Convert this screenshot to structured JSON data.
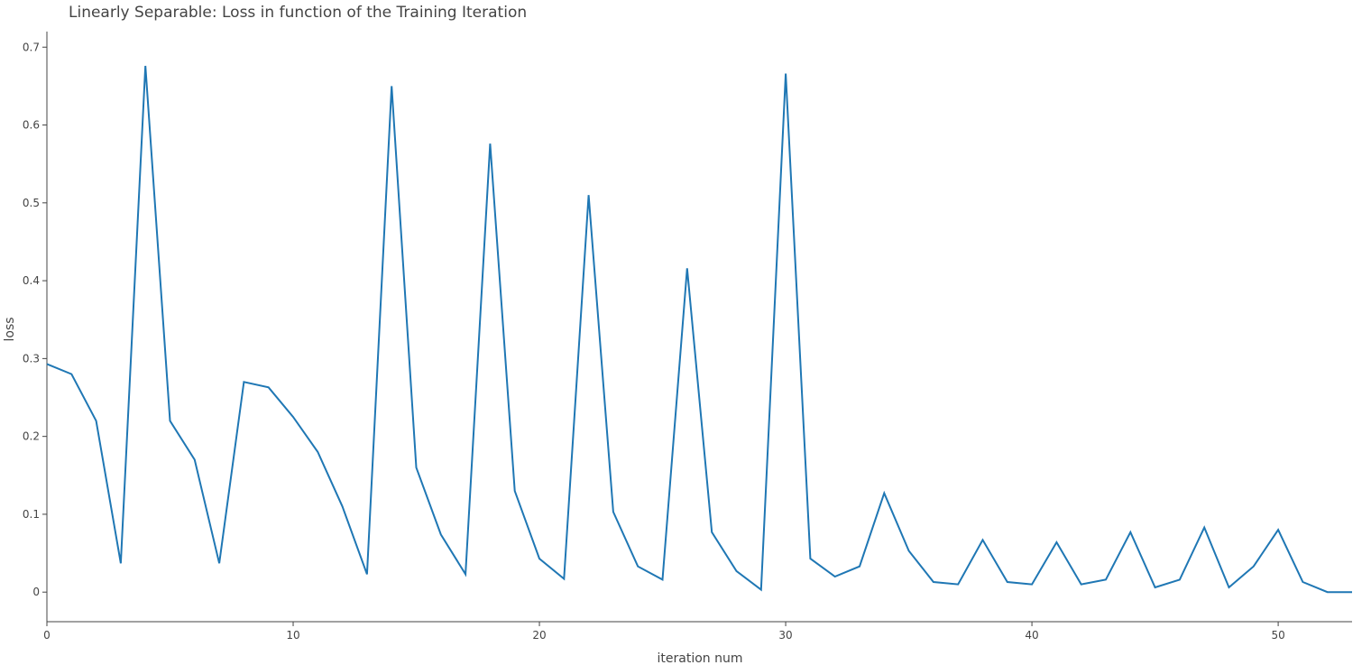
{
  "chart_data": {
    "type": "line",
    "title": "Linearly Separable: Loss in function of the Training Iteration",
    "xlabel": "iteration num",
    "ylabel": "loss",
    "xlim": [
      0,
      53
    ],
    "ylim": [
      -0.038,
      0.72
    ],
    "xticks": [
      0,
      10,
      20,
      30,
      40,
      50
    ],
    "yticks": [
      0,
      0.1,
      0.2,
      0.3,
      0.4,
      0.5,
      0.6,
      0.7
    ],
    "grid": false,
    "series_color": "#1f77b4",
    "x": [
      0,
      1,
      2,
      3,
      4,
      5,
      6,
      7,
      8,
      9,
      10,
      11,
      12,
      13,
      14,
      15,
      16,
      17,
      18,
      19,
      20,
      21,
      22,
      23,
      24,
      25,
      26,
      27,
      28,
      29,
      30,
      31,
      32,
      33,
      34,
      35,
      36,
      37,
      38,
      39,
      40,
      41,
      42,
      43,
      44,
      45,
      46,
      47,
      48,
      49,
      50,
      51,
      52,
      53
    ],
    "y": [
      0.293,
      0.28,
      0.22,
      0.037,
      0.676,
      0.22,
      0.17,
      0.037,
      0.27,
      0.263,
      0.225,
      0.18,
      0.11,
      0.023,
      0.65,
      0.16,
      0.074,
      0.023,
      0.576,
      0.13,
      0.043,
      0.017,
      0.51,
      0.103,
      0.033,
      0.016,
      0.416,
      0.077,
      0.027,
      0.003,
      0.666,
      0.043,
      0.02,
      0.033,
      0.127,
      0.053,
      0.013,
      0.01,
      0.067,
      0.013,
      0.01,
      0.064,
      0.01,
      0.016,
      0.077,
      0.006,
      0.016,
      0.083,
      0.006,
      0.033,
      0.08,
      0.013,
      0.0,
      0.0
    ]
  }
}
